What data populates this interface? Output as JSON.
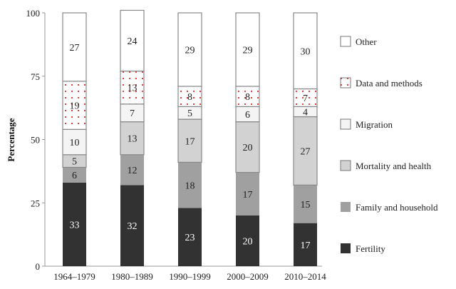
{
  "chart_data": {
    "type": "bar",
    "stacked": true,
    "title": "",
    "xlabel": "",
    "ylabel": "Percentage",
    "ylim": [
      0,
      100
    ],
    "yticks": [
      0,
      25,
      50,
      75,
      100
    ],
    "grid": false,
    "legend_placement": "right",
    "categories": [
      "1964–1979",
      "1980–1989",
      "1990–1999",
      "2000–2009",
      "2010–2014"
    ],
    "series": [
      {
        "name": "Fertility",
        "values": [
          33,
          32,
          23,
          20,
          17
        ],
        "color": "#323232",
        "label_color": "#ffffff"
      },
      {
        "name": "Family and household",
        "values": [
          6,
          12,
          18,
          17,
          15
        ],
        "color": "#a0a0a0",
        "label_color": "#222222"
      },
      {
        "name": "Mortality and health",
        "values": [
          5,
          13,
          17,
          20,
          27
        ],
        "color": "#d2d2d2",
        "label_color": "#222222"
      },
      {
        "name": "Migration",
        "values": [
          10,
          7,
          5,
          6,
          4
        ],
        "color": "#f4f4f4",
        "label_color": "#222222"
      },
      {
        "name": "Data and methods",
        "values": [
          19,
          13,
          8,
          8,
          7
        ],
        "color": "#ffffff",
        "pattern": "red-dots",
        "dot_color": "#e00000",
        "label_color": "#222222"
      },
      {
        "name": "Other",
        "values": [
          27,
          24,
          29,
          29,
          30
        ],
        "color": "#ffffff",
        "label_color": "#222222"
      }
    ]
  }
}
